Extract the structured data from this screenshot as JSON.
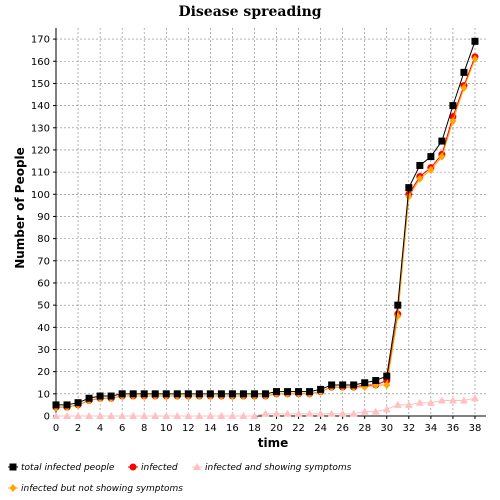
{
  "chart_data": {
    "type": "line",
    "title": "Disease spreading",
    "xlabel": "time",
    "ylabel": "Number of People",
    "xlim": [
      0,
      39
    ],
    "ylim": [
      0,
      175
    ],
    "x_ticks": [
      0,
      2,
      4,
      6,
      8,
      10,
      12,
      14,
      16,
      18,
      20,
      22,
      24,
      26,
      28,
      30,
      32,
      34,
      36,
      38
    ],
    "y_ticks": [
      0,
      10,
      20,
      30,
      40,
      50,
      60,
      70,
      80,
      90,
      100,
      110,
      120,
      130,
      140,
      150,
      160,
      170
    ],
    "grid": true,
    "legend_position": "bottom",
    "x": [
      0,
      1,
      2,
      3,
      4,
      5,
      6,
      7,
      8,
      9,
      10,
      11,
      12,
      13,
      14,
      15,
      16,
      17,
      18,
      19,
      20,
      21,
      22,
      23,
      24,
      25,
      26,
      27,
      28,
      29,
      30,
      31,
      32,
      33,
      34,
      35,
      36,
      37,
      38
    ],
    "series": [
      {
        "name": "total infected people",
        "color": "#000000",
        "marker": "square",
        "values": [
          5,
          5,
          6,
          8,
          9,
          9,
          10,
          10,
          10,
          10,
          10,
          10,
          10,
          10,
          10,
          10,
          10,
          10,
          10,
          10,
          11,
          11,
          11,
          11,
          12,
          14,
          14,
          14,
          15,
          16,
          18,
          50,
          103,
          113,
          117,
          124,
          140,
          155,
          169
        ]
      },
      {
        "name": "infected",
        "color": "#ff0000",
        "marker": "circle",
        "values": [
          4,
          4,
          5,
          7,
          8,
          8,
          9,
          9,
          9,
          9,
          9,
          9,
          9,
          9,
          9,
          9,
          9,
          9,
          9,
          9,
          10,
          10,
          10,
          10,
          11,
          13,
          13,
          13,
          14,
          14,
          16,
          46,
          100,
          108,
          112,
          118,
          135,
          149,
          162
        ]
      },
      {
        "name": "infected and showing symptoms",
        "color": "#ffc0c0",
        "marker": "triangle",
        "values": [
          0,
          0,
          0,
          0,
          0,
          0,
          0,
          0,
          0,
          0,
          0,
          0,
          0,
          0,
          0,
          0,
          0,
          0,
          0,
          1,
          1,
          1,
          1,
          1,
          1,
          1,
          1,
          1,
          2,
          2,
          3,
          5,
          5,
          6,
          6,
          7,
          7,
          7,
          8
        ]
      },
      {
        "name": "infected but not showing symptoms",
        "color": "#ffa500",
        "marker": "diamond",
        "values": [
          4,
          4,
          5,
          7,
          8,
          8,
          9,
          9,
          9,
          9,
          9,
          9,
          9,
          9,
          9,
          9,
          9,
          9,
          9,
          9,
          10,
          10,
          10,
          10,
          11,
          13,
          13,
          13,
          13,
          14,
          14,
          45,
          99,
          107,
          111,
          117,
          133,
          148,
          161
        ]
      }
    ]
  }
}
